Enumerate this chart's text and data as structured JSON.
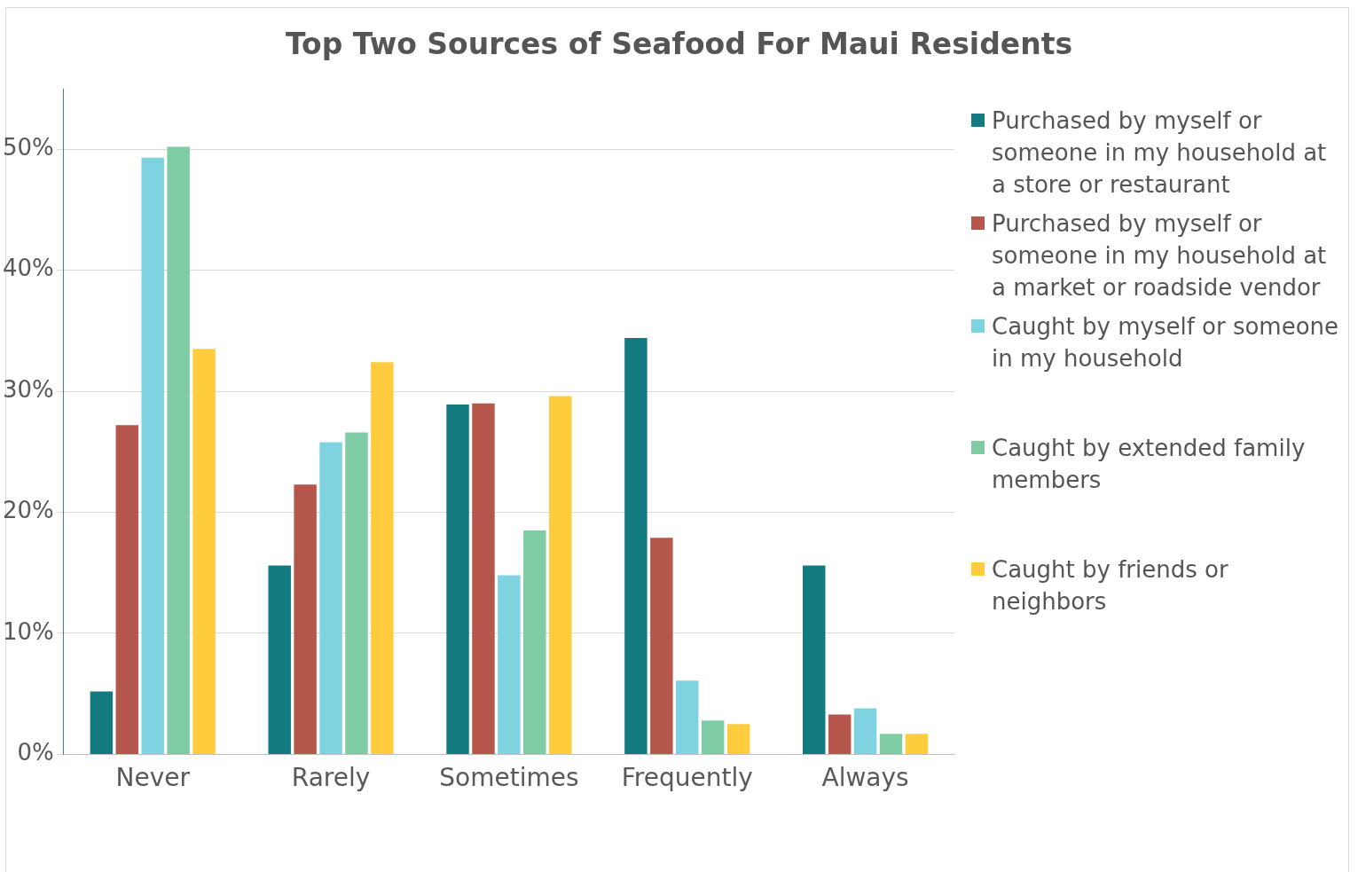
{
  "chart_data": {
    "type": "bar",
    "title": "Top Two Sources of Seafood For Maui Residents",
    "categories": [
      "Never",
      "Rarely",
      "Sometimes",
      "Frequently",
      "Always"
    ],
    "series": [
      {
        "name": "Purchased by myself or someone in my household at a store or restaurant",
        "color": "#137b80",
        "values": [
          5.2,
          15.6,
          28.9,
          34.4,
          15.6
        ]
      },
      {
        "name": "Purchased by myself or someone in my household at a market or roadside vendor",
        "color": "#b5574b",
        "values": [
          27.2,
          22.3,
          29.0,
          17.9,
          3.3
        ]
      },
      {
        "name": "Caught by myself or someone in my household",
        "color": "#7fd3e0",
        "values": [
          49.3,
          25.8,
          14.8,
          6.1,
          3.8
        ]
      },
      {
        "name": "Caught by extended family members",
        "color": "#7fcba4",
        "values": [
          50.2,
          26.6,
          18.5,
          2.8,
          1.7
        ]
      },
      {
        "name": "Caught by friends or neighbors",
        "color": "#ffcc3d",
        "values": [
          33.5,
          32.4,
          29.6,
          2.5,
          1.7
        ]
      }
    ],
    "ylim": [
      0,
      55
    ],
    "yticks": [
      {
        "value": 0,
        "label": "0%"
      },
      {
        "value": 10,
        "label": "10%"
      },
      {
        "value": 20,
        "label": "20%"
      },
      {
        "value": 30,
        "label": "30%"
      },
      {
        "value": 40,
        "label": "40%"
      },
      {
        "value": 50,
        "label": "50%"
      }
    ],
    "grid": "y",
    "legend": "right"
  }
}
